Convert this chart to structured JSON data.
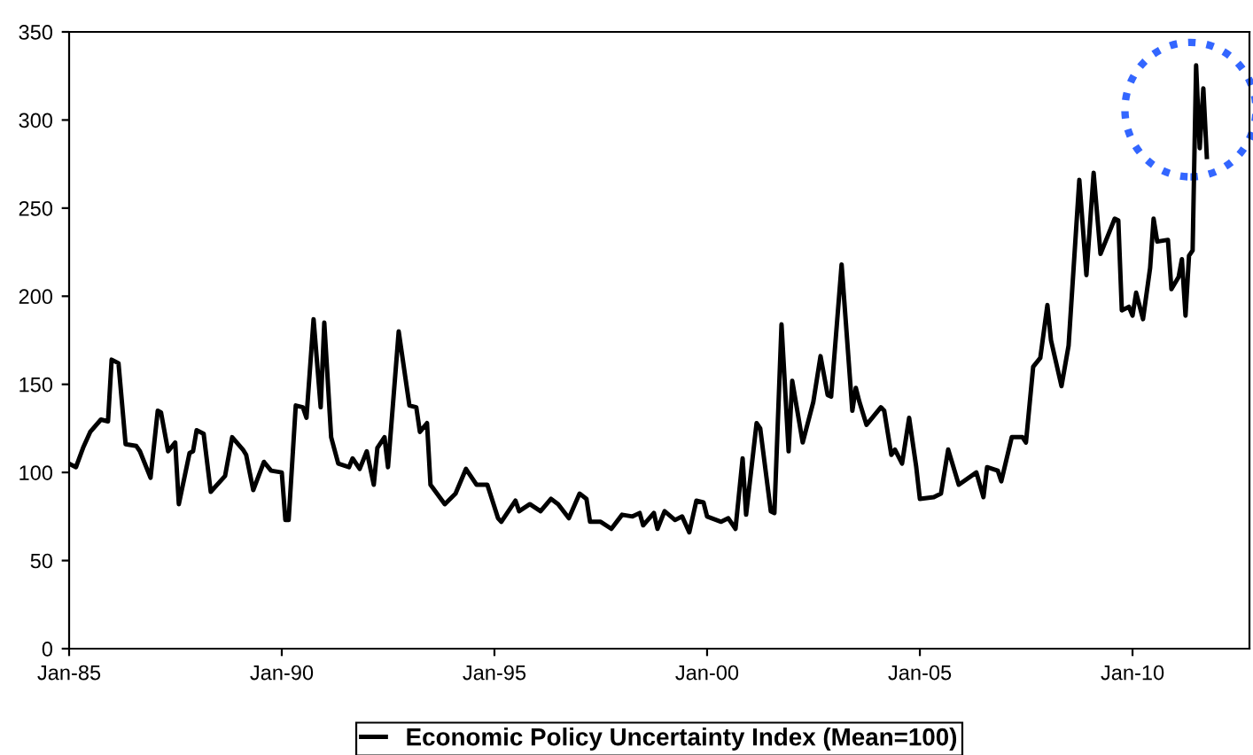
{
  "chart_data": {
    "type": "line",
    "x": [
      "1985-01",
      "1985-03",
      "1985-05",
      "1985-07",
      "1985-10",
      "1985-12",
      "1986-01",
      "1986-03",
      "1986-05",
      "1986-08",
      "1986-09",
      "1986-12",
      "1987-02",
      "1987-03",
      "1987-05",
      "1987-07",
      "1987-08",
      "1987-11",
      "1987-12",
      "1988-01",
      "1988-03",
      "1988-05",
      "1988-09",
      "1988-11",
      "1989-02",
      "1989-03",
      "1989-05",
      "1989-08",
      "1989-10",
      "1990-01",
      "1990-02",
      "1990-03",
      "1990-05",
      "1990-07",
      "1990-08",
      "1990-10",
      "1990-12",
      "1991-01",
      "1991-03",
      "1991-05",
      "1991-08",
      "1991-09",
      "1991-11",
      "1992-01",
      "1992-03",
      "1992-04",
      "1992-06",
      "1992-07",
      "1992-10",
      "1993-01",
      "1993-03",
      "1993-04",
      "1993-06",
      "1993-07",
      "1993-11",
      "1994-02",
      "1994-05",
      "1994-08",
      "1994-11",
      "1995-02",
      "1995-03",
      "1995-07",
      "1995-08",
      "1995-11",
      "1996-02",
      "1996-05",
      "1996-07",
      "1996-10",
      "1997-01",
      "1997-03",
      "1997-04",
      "1997-07",
      "1997-10",
      "1998-01",
      "1998-04",
      "1998-06",
      "1998-07",
      "1998-10",
      "1998-11",
      "1999-01",
      "1999-04",
      "1999-06",
      "1999-08",
      "1999-10",
      "1999-12",
      "2000-01",
      "2000-05",
      "2000-07",
      "2000-09",
      "2000-11",
      "2000-12",
      "2001-03",
      "2001-04",
      "2001-07",
      "2001-08",
      "2001-10",
      "2001-12",
      "2002-01",
      "2002-04",
      "2002-07",
      "2002-09",
      "2002-11",
      "2002-12",
      "2003-03",
      "2003-06",
      "2003-07",
      "2003-08",
      "2003-10",
      "2004-02",
      "2004-03",
      "2004-05",
      "2004-06",
      "2004-08",
      "2004-10",
      "2004-12",
      "2005-01",
      "2005-05",
      "2005-07",
      "2005-09",
      "2005-12",
      "2006-05",
      "2006-07",
      "2006-08",
      "2006-11",
      "2006-12",
      "2007-03",
      "2007-06",
      "2007-07",
      "2007-09",
      "2007-11",
      "2008-01",
      "2008-02",
      "2008-05",
      "2008-07",
      "2008-10",
      "2008-12",
      "2009-02",
      "2009-04",
      "2009-08",
      "2009-09",
      "2009-10",
      "2009-12",
      "2010-01",
      "2010-02",
      "2010-04",
      "2010-06",
      "2010-07",
      "2010-08",
      "2010-11",
      "2010-12",
      "2011-02",
      "2011-03",
      "2011-04",
      "2011-05",
      "2011-06",
      "2011-07",
      "2011-08",
      "2011-09",
      "2011-10"
    ],
    "series": [
      {
        "name": "Economic Policy Uncertainty Index (Mean=100)",
        "color": "#000000",
        "values": [
          105,
          103,
          114,
          123,
          130,
          129,
          164,
          162,
          116,
          115,
          112,
          97,
          135,
          134,
          112,
          117,
          82,
          111,
          112,
          124,
          122,
          89,
          98,
          120,
          113,
          110,
          90,
          106,
          101,
          100,
          73,
          73,
          138,
          137,
          131,
          187,
          137,
          185,
          120,
          105,
          103,
          108,
          102,
          112,
          93,
          114,
          120,
          103,
          180,
          138,
          137,
          123,
          128,
          93,
          82,
          88,
          102,
          93,
          93,
          74,
          72,
          84,
          78,
          82,
          78,
          85,
          82,
          74,
          88,
          85,
          72,
          72,
          68,
          76,
          75,
          77,
          70,
          77,
          68,
          78,
          73,
          75,
          66,
          84,
          83,
          75,
          72,
          74,
          68,
          108,
          76,
          128,
          125,
          78,
          77,
          184,
          112,
          152,
          117,
          140,
          166,
          144,
          143,
          218,
          135,
          148,
          140,
          127,
          137,
          135,
          110,
          113,
          105,
          131,
          103,
          85,
          86,
          88,
          113,
          93,
          100,
          86,
          103,
          101,
          95,
          120,
          120,
          117,
          160,
          165,
          195,
          175,
          149,
          172,
          266,
          212,
          270,
          224,
          244,
          243,
          192,
          194,
          189,
          202,
          187,
          216,
          244,
          231,
          232,
          204,
          211,
          221,
          189,
          223,
          226,
          331,
          284,
          318,
          279
        ]
      }
    ],
    "xlim": [
      "1985-01",
      "2012-10"
    ],
    "xticks": [
      {
        "value": "1985-01",
        "label": "Jan-85"
      },
      {
        "value": "1990-01",
        "label": "Jan-90"
      },
      {
        "value": "1995-01",
        "label": "Jan-95"
      },
      {
        "value": "2000-01",
        "label": "Jan-00"
      },
      {
        "value": "2005-01",
        "label": "Jan-05"
      },
      {
        "value": "2010-01",
        "label": "Jan-10"
      }
    ],
    "ylim": [
      0,
      350
    ],
    "yticks": [
      0,
      50,
      100,
      150,
      200,
      250,
      300,
      350
    ],
    "grid": false,
    "legend": "bottom",
    "marker": "none",
    "line_style": "solid"
  }
}
